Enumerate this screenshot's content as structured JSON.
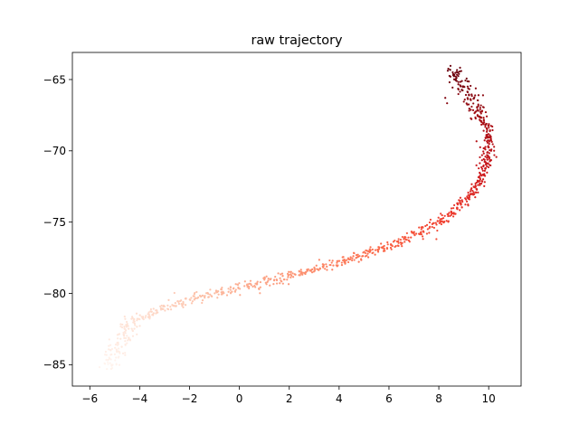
{
  "chart_data": {
    "type": "scatter",
    "title": "raw trajectory",
    "xlabel": "",
    "ylabel": "",
    "xlim": [
      -6.7,
      11.3
    ],
    "ylim": [
      -86.5,
      -63.1
    ],
    "xticks": [
      -6,
      -4,
      -2,
      0,
      2,
      4,
      6,
      8,
      10
    ],
    "xtick_labels": [
      "−6",
      "−4",
      "−2",
      "0",
      "2",
      "4",
      "6",
      "8",
      "10"
    ],
    "yticks": [
      -65,
      -70,
      -75,
      -80,
      -85
    ],
    "ytick_labels": [
      "−65",
      "−70",
      "−75",
      "−80",
      "−85"
    ],
    "grid": false,
    "colormap": "Reds",
    "color_low": "#fff5f0",
    "color_high": "#67000d",
    "path": [
      {
        "x": -5.2,
        "y": -85.2
      },
      {
        "x": -5.0,
        "y": -84.3
      },
      {
        "x": -4.7,
        "y": -83.3
      },
      {
        "x": -4.5,
        "y": -82.4
      },
      {
        "x": -4.1,
        "y": -81.8
      },
      {
        "x": -3.5,
        "y": -81.3
      },
      {
        "x": -2.8,
        "y": -80.9
      },
      {
        "x": -2.0,
        "y": -80.4
      },
      {
        "x": -1.0,
        "y": -80.0
      },
      {
        "x": 0.0,
        "y": -79.6
      },
      {
        "x": 1.0,
        "y": -79.2
      },
      {
        "x": 2.0,
        "y": -78.8
      },
      {
        "x": 3.0,
        "y": -78.3
      },
      {
        "x": 4.0,
        "y": -77.9
      },
      {
        "x": 5.0,
        "y": -77.3
      },
      {
        "x": 6.0,
        "y": -76.7
      },
      {
        "x": 7.0,
        "y": -75.9
      },
      {
        "x": 8.0,
        "y": -75.0
      },
      {
        "x": 8.7,
        "y": -74.1
      },
      {
        "x": 9.3,
        "y": -73.1
      },
      {
        "x": 9.7,
        "y": -72.0
      },
      {
        "x": 9.9,
        "y": -70.8
      },
      {
        "x": 10.0,
        "y": -69.6
      },
      {
        "x": 9.9,
        "y": -68.5
      },
      {
        "x": 9.6,
        "y": -67.4
      },
      {
        "x": 9.3,
        "y": -66.4
      },
      {
        "x": 9.0,
        "y": -65.6
      },
      {
        "x": 8.7,
        "y": -64.8
      },
      {
        "x": 8.6,
        "y": -64.3
      }
    ],
    "n_points": 900,
    "noise_sd": 0.12,
    "n_outliers": 40
  }
}
